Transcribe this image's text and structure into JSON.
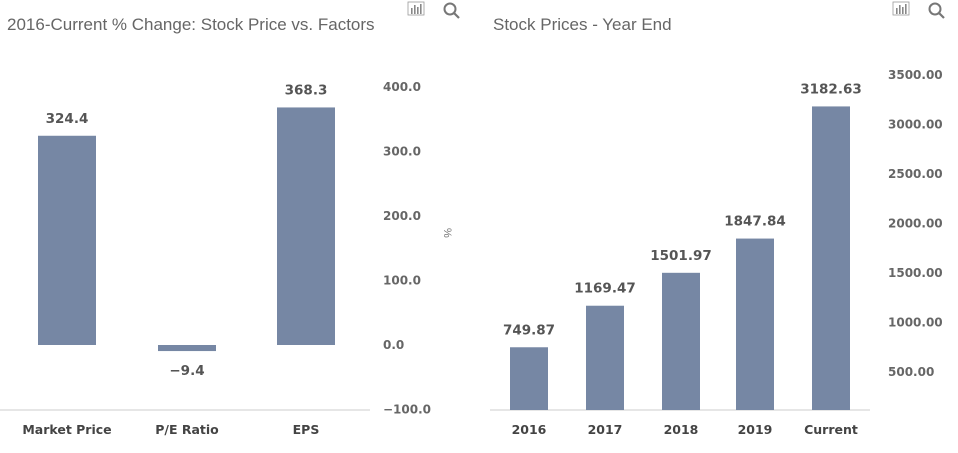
{
  "chart_data": [
    {
      "type": "bar",
      "title": "2016-Current % Change: Stock Price vs. Factors",
      "ylabel": "%",
      "categories": [
        "Market Price",
        "P/E Ratio",
        "EPS"
      ],
      "values": [
        324.4,
        -9.4,
        368.3
      ],
      "value_labels": [
        "324.4",
        "-9.4",
        "368.3"
      ],
      "yticks": [
        "400.0",
        "300.0",
        "200.0",
        "100.0",
        "0.0",
        "-100.0"
      ],
      "ytick_values": [
        400,
        300,
        200,
        100,
        0,
        -100
      ],
      "ylim": [
        -100,
        400
      ]
    },
    {
      "type": "bar",
      "title": "Stock Prices - Year End",
      "ylabel": "",
      "categories": [
        "2016",
        "2017",
        "2018",
        "2019",
        "Current"
      ],
      "values": [
        749.87,
        1169.47,
        1501.97,
        1847.84,
        3182.63
      ],
      "value_labels": [
        "749.87",
        "1169.47",
        "1501.97",
        "1847.84",
        "3182.63"
      ],
      "yticks": [
        "3500.00",
        "3000.00",
        "2500.00",
        "2000.00",
        "1500.00",
        "1000.00",
        "500.00"
      ],
      "ytick_values": [
        3500,
        3000,
        2500,
        2000,
        1500,
        1000,
        500
      ],
      "ylim": [
        124,
        3500
      ]
    }
  ],
  "bar_color": "#7687a4",
  "icons": [
    "bar-chart-icon",
    "search-icon"
  ]
}
